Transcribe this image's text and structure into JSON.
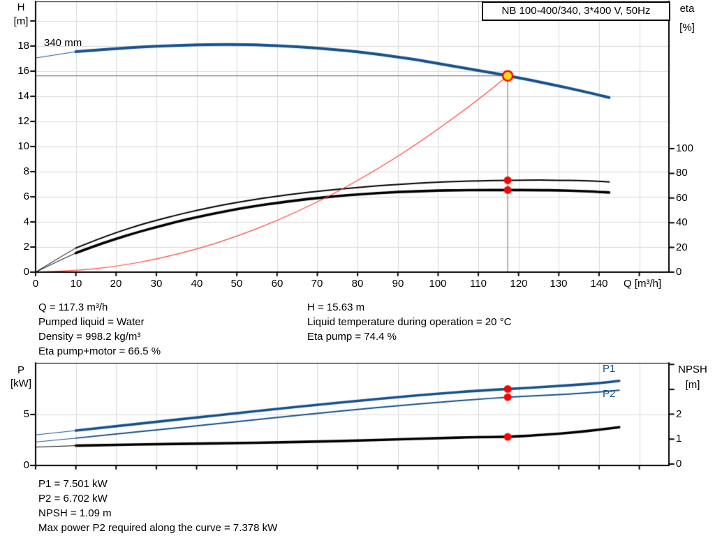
{
  "title_box": {
    "label": "NB 100-400/340, 3*400 V, 50Hz"
  },
  "colors": {
    "curve_blue": "#17528f",
    "curve_black": "#000000",
    "system_red": "#ff483c",
    "marker_red": "#ff0000",
    "duty_yellow": "#ffe000",
    "grid_gray": "#d9d9d9",
    "guide_gray": "#828282",
    "frame_black": "#000000"
  },
  "axes": {
    "top": {
      "left_label": "H",
      "left_unit": "[m]",
      "right_label": "eta",
      "right_unit": "[%]",
      "x_label": "Q [m³/h]",
      "impeller_label": "340 mm"
    },
    "bottom": {
      "left_label": "P",
      "left_unit": "[kW]",
      "right_label": "NPSH",
      "right_unit": "[m]",
      "p1_label": "P1",
      "p2_label": "P2"
    }
  },
  "info_top": {
    "q": "Q = 117.3 m³/h",
    "pumped_liquid": "Pumped liquid = Water",
    "density": "Density = 998.2 kg/m³",
    "eta_pump_motor": "Eta pump+motor = 66.5 %",
    "h": "H = 15.63 m",
    "liquid_temp": "Liquid temperature during operation = 20 °C",
    "eta_pump": "Eta pump = 74.4 %"
  },
  "info_bottom": {
    "p1": "P1 = 7.501 kW",
    "p2": "P2 = 6.702 kW",
    "npsh": "NPSH = 1.09 m",
    "max_p2": "Max power P2 required along the curve = 7.378 kW"
  },
  "chart_data": [
    {
      "type": "line",
      "title": "NB 100-400/340, 3*400 V, 50Hz",
      "xlabel": "Q [m³/h]",
      "ylabel_left": "H [m]",
      "ylabel_right": "eta [%]",
      "xlim": [
        0,
        157
      ],
      "ylim_left": [
        0,
        21.5
      ],
      "ylim_right": [
        0,
        110
      ],
      "grid": true,
      "x_tick_step": 10,
      "x_tick_grid_max": 150,
      "x_tick_label_max": 140,
      "left_ticks": {
        "step": 2,
        "max": 20,
        "label_max": 18
      },
      "right_ticks": {
        "step": 20,
        "max": 100,
        "label_max": 100
      },
      "series": [
        {
          "name": "head-curve-340mm",
          "axis": "left",
          "color": "curve_blue",
          "width": 4,
          "thin_until": 10,
          "points": [
            [
              0,
              17.05
            ],
            [
              5,
              17.3
            ],
            [
              10,
              17.55
            ],
            [
              15,
              17.68
            ],
            [
              20,
              17.8
            ],
            [
              25,
              17.9
            ],
            [
              30,
              17.98
            ],
            [
              35,
              18.04
            ],
            [
              40,
              18.09
            ],
            [
              45,
              18.12
            ],
            [
              50,
              18.12
            ],
            [
              55,
              18.09
            ],
            [
              60,
              18.03
            ],
            [
              65,
              17.94
            ],
            [
              70,
              17.83
            ],
            [
              75,
              17.7
            ],
            [
              80,
              17.54
            ],
            [
              85,
              17.35
            ],
            [
              90,
              17.13
            ],
            [
              95,
              16.89
            ],
            [
              100,
              16.62
            ],
            [
              105,
              16.33
            ],
            [
              110,
              16.05
            ],
            [
              115,
              15.78
            ],
            [
              120,
              15.48
            ],
            [
              125,
              15.15
            ],
            [
              130,
              14.82
            ],
            [
              135,
              14.47
            ],
            [
              140,
              14.1
            ],
            [
              142.5,
              13.9
            ]
          ]
        },
        {
          "name": "eta-pump-curve",
          "axis": "right",
          "color": "curve_black",
          "width": 2,
          "thin_until": 10,
          "points": [
            [
              0,
              0
            ],
            [
              5,
              10
            ],
            [
              10,
              19.5
            ],
            [
              15,
              26
            ],
            [
              20,
              32
            ],
            [
              25,
              37.3
            ],
            [
              30,
              42
            ],
            [
              35,
              46.2
            ],
            [
              40,
              50
            ],
            [
              45,
              53.4
            ],
            [
              50,
              56.4
            ],
            [
              55,
              59.1
            ],
            [
              60,
              61.5
            ],
            [
              65,
              63.6
            ],
            [
              70,
              65.5
            ],
            [
              75,
              67.1
            ],
            [
              80,
              68.6
            ],
            [
              85,
              69.9
            ],
            [
              90,
              71
            ],
            [
              95,
              72
            ],
            [
              100,
              72.8
            ],
            [
              105,
              73.5
            ],
            [
              110,
              74
            ],
            [
              117.3,
              74.4
            ],
            [
              125,
              74.55
            ],
            [
              130,
              74.45
            ],
            [
              135,
              74.15
            ],
            [
              140,
              73.5
            ],
            [
              142.5,
              73
            ]
          ]
        },
        {
          "name": "eta-pump-motor-curve",
          "axis": "right",
          "color": "curve_black",
          "width": 3.6,
          "thin_until": 10,
          "points": [
            [
              0,
              0
            ],
            [
              5,
              8
            ],
            [
              10,
              15.5
            ],
            [
              15,
              21.5
            ],
            [
              20,
              27
            ],
            [
              25,
              32
            ],
            [
              30,
              36.5
            ],
            [
              35,
              40.7
            ],
            [
              40,
              44.5
            ],
            [
              45,
              47.9
            ],
            [
              50,
              51
            ],
            [
              55,
              53.7
            ],
            [
              60,
              56.1
            ],
            [
              65,
              58.2
            ],
            [
              70,
              60
            ],
            [
              75,
              61.6
            ],
            [
              80,
              62.9
            ],
            [
              85,
              64
            ],
            [
              90,
              64.9
            ],
            [
              95,
              65.5
            ],
            [
              100,
              66
            ],
            [
              105,
              66.3
            ],
            [
              110,
              66.45
            ],
            [
              117.3,
              66.5
            ],
            [
              125,
              66.45
            ],
            [
              130,
              66.2
            ],
            [
              135,
              65.8
            ],
            [
              140,
              65
            ],
            [
              142.5,
              64.5
            ]
          ]
        },
        {
          "name": "system-curve",
          "axis": "left",
          "color": "system_red",
          "width": 1.2,
          "thin_until": 0,
          "points": [
            [
              0,
              0
            ],
            [
              10,
              0.11
            ],
            [
              20,
              0.45
            ],
            [
              30,
              1.02
            ],
            [
              40,
              1.82
            ],
            [
              50,
              2.84
            ],
            [
              60,
              4.09
            ],
            [
              70,
              5.57
            ],
            [
              80,
              7.27
            ],
            [
              90,
              9.2
            ],
            [
              100,
              11.36
            ],
            [
              110,
              13.74
            ],
            [
              117.3,
              15.63
            ]
          ]
        }
      ],
      "duty_point": {
        "q": 117.3,
        "h": 15.63,
        "eta_pump": 74.4,
        "eta_pump_motor": 66.5,
        "guides": true
      }
    },
    {
      "type": "line",
      "title": "",
      "xlabel": "",
      "ylabel_left": "P [kW]",
      "ylabel_right": "NPSH [m]",
      "xlim": [
        0,
        157
      ],
      "ylim_left": [
        0,
        10
      ],
      "ylim_right": [
        0,
        4.1
      ],
      "grid": true,
      "x_tick_step": 10,
      "x_tick_grid_max": 150,
      "x_tick_label_max": -1,
      "left_ticks": {
        "step": 5,
        "max": 5,
        "label_max": 5
      },
      "right_ticks": {
        "step": 1,
        "max": 4,
        "label_max": 2
      },
      "series": [
        {
          "name": "npsh-curve",
          "axis": "right",
          "color": "curve_black",
          "width": 3.6,
          "thin_until": 10,
          "points": [
            [
              0,
              0.68
            ],
            [
              10,
              0.74
            ],
            [
              20,
              0.77
            ],
            [
              30,
              0.8
            ],
            [
              40,
              0.82
            ],
            [
              50,
              0.84
            ],
            [
              60,
              0.87
            ],
            [
              70,
              0.9
            ],
            [
              80,
              0.94
            ],
            [
              90,
              0.99
            ],
            [
              100,
              1.04
            ],
            [
              110,
              1.08
            ],
            [
              117.3,
              1.09
            ],
            [
              125,
              1.16
            ],
            [
              130,
              1.22
            ],
            [
              135,
              1.29
            ],
            [
              140,
              1.38
            ],
            [
              145,
              1.48
            ]
          ]
        },
        {
          "name": "p2-curve",
          "axis": "left",
          "color": "curve_blue",
          "width": 2,
          "thin_until": 10,
          "points": [
            [
              0,
              2.3
            ],
            [
              10,
              2.68
            ],
            [
              20,
              3.08
            ],
            [
              30,
              3.48
            ],
            [
              40,
              3.89
            ],
            [
              50,
              4.3
            ],
            [
              60,
              4.71
            ],
            [
              70,
              5.11
            ],
            [
              80,
              5.5
            ],
            [
              90,
              5.87
            ],
            [
              100,
              6.2
            ],
            [
              110,
              6.5
            ],
            [
              117.3,
              6.702
            ],
            [
              125,
              6.85
            ],
            [
              130,
              6.95
            ],
            [
              135,
              7.07
            ],
            [
              140,
              7.2
            ],
            [
              145,
              7.378
            ]
          ]
        },
        {
          "name": "p1-curve",
          "axis": "left",
          "color": "curve_blue",
          "width": 3.6,
          "thin_until": 10,
          "points": [
            [
              0,
              3.0
            ],
            [
              10,
              3.42
            ],
            [
              20,
              3.85
            ],
            [
              30,
              4.28
            ],
            [
              40,
              4.71
            ],
            [
              50,
              5.13
            ],
            [
              60,
              5.55
            ],
            [
              70,
              5.95
            ],
            [
              80,
              6.34
            ],
            [
              90,
              6.71
            ],
            [
              100,
              7.05
            ],
            [
              110,
              7.34
            ],
            [
              117.3,
              7.501
            ],
            [
              125,
              7.68
            ],
            [
              130,
              7.8
            ],
            [
              135,
              7.93
            ],
            [
              140,
              8.08
            ],
            [
              145,
              8.3
            ]
          ]
        }
      ],
      "duty_point": {
        "q": 117.3,
        "p1": 7.501,
        "p2": 6.702,
        "npsh": 1.09,
        "guides": false
      }
    }
  ]
}
